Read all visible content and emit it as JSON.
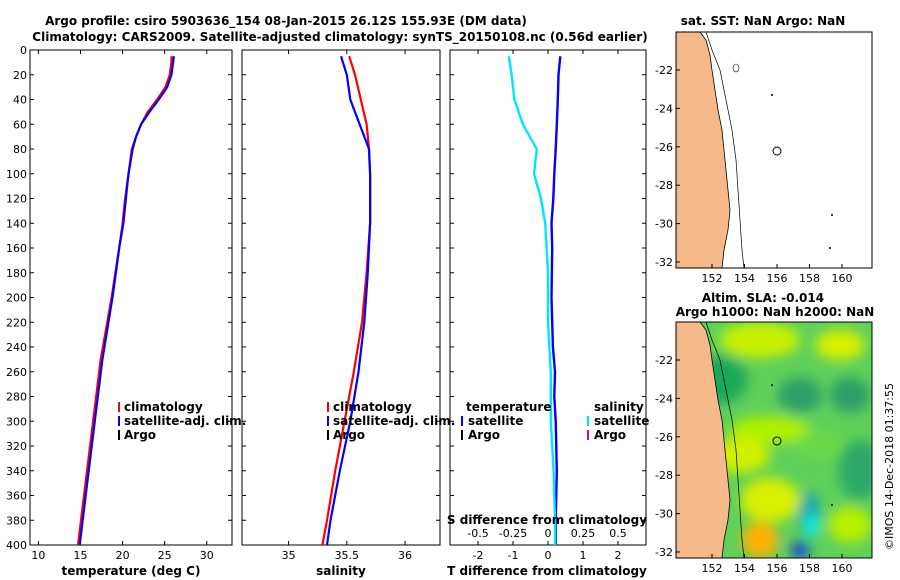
{
  "title": {
    "line1": "Argo profile: csiro 5903636_154 08-Jan-2015 26.12S 155.93E (DM data)",
    "line2": "Climatology: CARS2009. Satellite-adjusted climatology: synTS_20150108.nc (0.56d earlier)"
  },
  "colors": {
    "climatology": "#ff0000",
    "satellite": "#0000ff",
    "argo": "#000000",
    "temp_diff_sat": "#0000ff",
    "sal_diff_sat": "#00e5ff",
    "sal_argo": "#cc00cc",
    "land": "#f5b98a"
  },
  "chart_data": [
    {
      "id": "temperature",
      "type": "line",
      "xlabel": "temperature (deg C)",
      "ylabel": "",
      "xlim": [
        9,
        33
      ],
      "ylim": [
        400,
        0
      ],
      "xticks": [
        "10",
        "15",
        "20",
        "25",
        "30"
      ],
      "yticks": [
        "0",
        "20",
        "40",
        "60",
        "80",
        "100",
        "120",
        "140",
        "160",
        "180",
        "200",
        "220",
        "240",
        "260",
        "280",
        "300",
        "320",
        "340",
        "360",
        "380",
        "400"
      ],
      "legend": [
        "climatology",
        "satellite-adj. clim.",
        "Argo"
      ],
      "series": [
        {
          "name": "climatology",
          "depth": [
            5,
            10,
            20,
            30,
            40,
            50,
            60,
            70,
            80,
            100,
            120,
            140,
            160,
            200,
            250,
            300,
            350,
            400
          ],
          "values": [
            25.8,
            25.8,
            25.6,
            25.1,
            24.1,
            23.0,
            22.2,
            21.6,
            21.1,
            20.7,
            20.3,
            20.0,
            19.6,
            18.7,
            17.4,
            16.5,
            15.6,
            14.7
          ]
        },
        {
          "name": "satellite-adj. clim.",
          "depth": [
            5,
            10,
            20,
            30,
            40,
            50,
            60,
            70,
            80,
            100,
            120,
            140,
            160,
            200,
            250,
            300,
            350,
            400
          ],
          "values": [
            26.1,
            26.0,
            25.8,
            25.3,
            24.3,
            23.2,
            22.2,
            21.6,
            21.2,
            20.7,
            20.4,
            20.1,
            19.6,
            18.8,
            17.6,
            16.7,
            15.8,
            14.9
          ]
        }
      ]
    },
    {
      "id": "salinity",
      "type": "line",
      "xlabel": "salinity",
      "ylabel": "",
      "xlim": [
        34.6,
        36.3
      ],
      "ylim": [
        400,
        0
      ],
      "xticks": [
        "35",
        "35.5",
        "36"
      ],
      "legend": [
        "climatology",
        "satellite-adj. clim.",
        "Argo"
      ],
      "series": [
        {
          "name": "climatology",
          "depth": [
            5,
            20,
            40,
            60,
            80,
            100,
            140,
            180,
            220,
            260,
            300,
            340,
            380,
            400
          ],
          "values": [
            35.52,
            35.57,
            35.62,
            35.67,
            35.69,
            35.7,
            35.7,
            35.67,
            35.63,
            35.56,
            35.48,
            35.4,
            35.33,
            35.29
          ]
        },
        {
          "name": "satellite-adj. clim.",
          "depth": [
            5,
            20,
            40,
            60,
            80,
            100,
            140,
            180,
            220,
            260,
            300,
            340,
            380,
            400
          ],
          "values": [
            35.45,
            35.5,
            35.53,
            35.61,
            35.69,
            35.7,
            35.7,
            35.68,
            35.65,
            35.6,
            35.53,
            35.44,
            35.36,
            35.33
          ]
        }
      ]
    },
    {
      "id": "difference",
      "type": "line",
      "xlabel": "T difference from climatology",
      "xlabel2": "S difference from climatology",
      "xlim": [
        -2.8,
        2.8
      ],
      "ylim": [
        400,
        0
      ],
      "xticks": [
        "-2",
        "-1",
        "0",
        "1",
        "2"
      ],
      "xticks2": [
        "-0.5",
        "-0.25",
        "0",
        "0.25",
        "0.5"
      ],
      "legend_temperature": {
        "title": "temperature",
        "items": [
          "satellite",
          "Argo"
        ]
      },
      "legend_salinity": {
        "title": "salinity",
        "items": [
          "satellite",
          "Argo"
        ]
      },
      "series": [
        {
          "name": "temperature satellite",
          "depth": [
            5,
            20,
            40,
            60,
            80,
            100,
            120,
            140,
            160,
            200,
            240,
            260,
            280,
            300,
            340,
            380,
            400
          ],
          "values": [
            0.35,
            0.3,
            0.28,
            0.25,
            0.22,
            0.18,
            0.15,
            0.1,
            0.12,
            0.1,
            0.14,
            0.2,
            0.18,
            0.22,
            0.25,
            0.22,
            0.22
          ]
        },
        {
          "name": "salinity satellite",
          "depth": [
            5,
            20,
            40,
            60,
            80,
            100,
            120,
            140,
            180,
            220,
            260,
            300,
            340,
            380,
            400
          ],
          "values": [
            -0.28,
            -0.26,
            -0.24,
            -0.18,
            -0.08,
            -0.1,
            -0.05,
            -0.02,
            0.0,
            0.0,
            0.02,
            0.02,
            0.04,
            0.05,
            0.05
          ]
        }
      ]
    },
    {
      "id": "sst_map",
      "type": "heatmap",
      "title": "sat. SST: NaN Argo: NaN",
      "xticks": [
        "152",
        "154",
        "156",
        "158",
        "160"
      ],
      "yticks": [
        "-22",
        "-24",
        "-26",
        "-28",
        "-30",
        "-32"
      ],
      "argo_position": {
        "lon": 155.93,
        "lat": -26.12
      }
    },
    {
      "id": "sla_map",
      "type": "heatmap",
      "title": "Altim. SLA: -0.014",
      "subtitle": "Argo h1000: NaN h2000: NaN",
      "xticks": [
        "152",
        "154",
        "156",
        "158",
        "160"
      ],
      "yticks": [
        "-22",
        "-24",
        "-26",
        "-28",
        "-30",
        "-32"
      ],
      "argo_position": {
        "lon": 155.93,
        "lat": -26.12
      }
    }
  ],
  "credit": "©IMOS 14-Dec-2018 01:37:55"
}
